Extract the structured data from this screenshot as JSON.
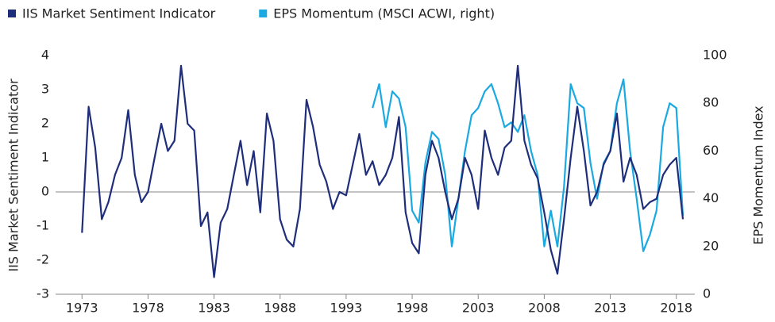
{
  "chart_data": {
    "type": "line",
    "legend_position": "top-left",
    "y_label": "IIS Market Sentiment Indicator",
    "y2_label": "EPS Momentum Index",
    "x": [
      1973,
      1973.5,
      1974,
      1974.5,
      1975,
      1975.5,
      1976,
      1976.5,
      1977,
      1977.5,
      1978,
      1978.5,
      1979,
      1979.5,
      1980,
      1980.5,
      1981,
      1981.5,
      1982,
      1982.5,
      1983,
      1983.5,
      1984,
      1984.5,
      1985,
      1985.5,
      1986,
      1986.5,
      1987,
      1987.5,
      1988,
      1988.5,
      1989,
      1989.5,
      1990,
      1990.5,
      1991,
      1991.5,
      1992,
      1992.5,
      1993,
      1993.5,
      1994,
      1994.5,
      1995,
      1995.5,
      1996,
      1996.5,
      1997,
      1997.5,
      1998,
      1998.5,
      1999,
      1999.5,
      2000,
      2000.5,
      2001,
      2001.5,
      2002,
      2002.5,
      2003,
      2003.5,
      2004,
      2004.5,
      2005,
      2005.5,
      2006,
      2006.5,
      2007,
      2007.5,
      2008,
      2008.5,
      2009,
      2009.5,
      2010,
      2010.5,
      2011,
      2011.5,
      2012,
      2012.5,
      2013,
      2013.5,
      2014,
      2014.5,
      2015,
      2015.5,
      2016,
      2016.5,
      2017,
      2017.5,
      2018,
      2018.5
    ],
    "series": [
      {
        "name": "IIS Market Sentiment Indicator",
        "color": "#1f2e7a",
        "values": [
          -1.2,
          2.5,
          1.3,
          -0.8,
          -0.3,
          0.5,
          1.0,
          2.4,
          0.5,
          -0.3,
          0.0,
          1.0,
          2.0,
          1.2,
          1.5,
          3.7,
          2.0,
          1.8,
          -1.0,
          -0.6,
          -2.5,
          -0.9,
          -0.5,
          0.5,
          1.5,
          0.2,
          1.2,
          -0.6,
          2.3,
          1.5,
          -0.8,
          -1.4,
          -1.6,
          -0.5,
          2.7,
          1.9,
          0.8,
          0.3,
          -0.5,
          0.0,
          -0.1,
          0.8,
          1.7,
          0.5,
          0.9,
          0.2,
          0.5,
          1.0,
          2.2,
          -0.6,
          -1.5,
          -1.8,
          0.5,
          1.5,
          1.0,
          0.0,
          -0.8,
          -0.2,
          1.0,
          0.5,
          -0.5,
          1.8,
          1.0,
          0.5,
          1.3,
          1.5,
          3.7,
          1.5,
          0.8,
          0.4,
          -0.6,
          -1.7,
          -2.4,
          -0.8,
          1.0,
          2.5,
          1.2,
          -0.4,
          0.0,
          0.8,
          1.2,
          2.3,
          0.3,
          1.0,
          0.5,
          -0.5,
          -0.3,
          -0.2,
          0.5,
          0.8,
          1.0,
          -0.8
        ]
      },
      {
        "name": "EPS Momentum (MSCI ACWI, right)",
        "color": "#1aa9e1",
        "axis": "y2",
        "values": [
          null,
          null,
          null,
          null,
          null,
          null,
          null,
          null,
          null,
          null,
          null,
          null,
          null,
          null,
          null,
          null,
          null,
          null,
          null,
          null,
          null,
          null,
          null,
          null,
          null,
          null,
          null,
          null,
          null,
          null,
          null,
          null,
          null,
          null,
          null,
          null,
          null,
          null,
          null,
          null,
          null,
          null,
          null,
          null,
          78,
          88,
          70,
          85,
          82,
          70,
          35,
          30,
          55,
          68,
          65,
          50,
          20,
          40,
          60,
          75,
          78,
          85,
          88,
          80,
          70,
          72,
          68,
          75,
          60,
          50,
          20,
          35,
          20,
          45,
          88,
          80,
          78,
          55,
          40,
          55,
          60,
          80,
          90,
          60,
          40,
          18,
          25,
          35,
          70,
          80,
          78,
          33
        ]
      }
    ],
    "xlim": [
      1971,
      2019.4
    ],
    "xticks": [
      1973,
      1978,
      1983,
      1988,
      1993,
      1998,
      2003,
      2008,
      2013,
      2018
    ],
    "ylim": [
      -3,
      4
    ],
    "yticks": [
      -3,
      -2,
      -1,
      0,
      1,
      2,
      3,
      4
    ],
    "y2lim": [
      0,
      100
    ],
    "y2ticks": [
      0,
      20,
      40,
      60,
      80,
      100
    ]
  }
}
